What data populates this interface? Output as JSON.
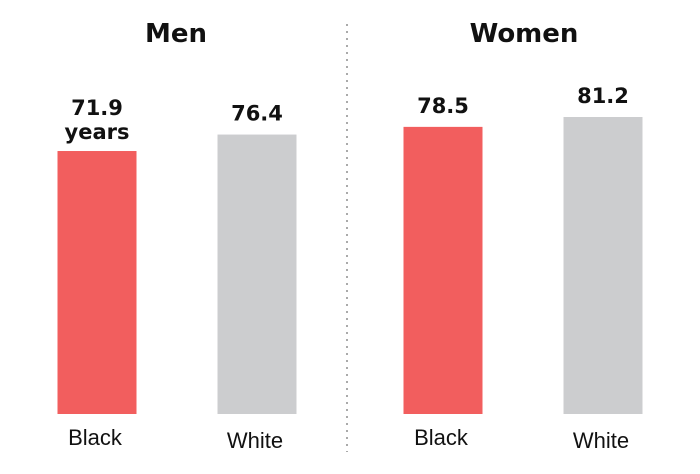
{
  "chart_data": [
    {
      "type": "bar",
      "title": "Men",
      "categories": [
        "Black",
        "White"
      ],
      "values": [
        71.9,
        76.4
      ],
      "value_labels": [
        "71.9",
        "76.4"
      ],
      "unit_label": "years",
      "colors": [
        "#f25e5e",
        "#cccdcf"
      ],
      "ylim": [
        0,
        81.2
      ],
      "grid": false
    },
    {
      "type": "bar",
      "title": "Women",
      "categories": [
        "Black",
        "White"
      ],
      "values": [
        78.5,
        81.2
      ],
      "value_labels": [
        "78.5",
        "81.2"
      ],
      "colors": [
        "#f25e5e",
        "#cccdcf"
      ],
      "ylim": [
        0,
        81.2
      ],
      "grid": false
    }
  ],
  "colors": {
    "black_bar": "#f25e5e",
    "white_bar": "#cccdcf",
    "divider": "#aaaaaa"
  }
}
